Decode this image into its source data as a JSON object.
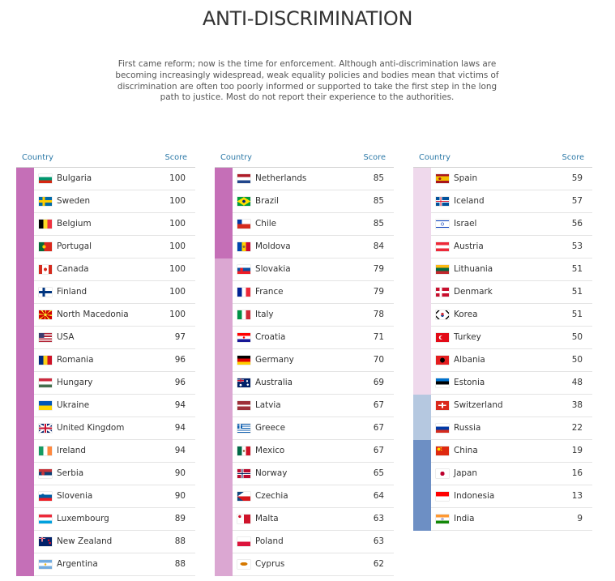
{
  "page": {
    "title": "ANTI-DISCRIMINATION",
    "intro": "First came reform; now is the time for enforcement. Although anti-discrimination laws are becoming increasingly widespread, weak equality policies and bodies mean that victims of discrimination are often too poorly informed or supported to take the first step in the long path to justice. Most do not report their experience to the authorities."
  },
  "chart_data": {
    "type": "table",
    "title": "ANTI-DISCRIMINATION",
    "columns": [
      "Country",
      "Score"
    ],
    "rows": [
      {
        "country": "Bulgaria",
        "score": 100,
        "flag": "bulgaria-flag",
        "color": "#c56fb7"
      },
      {
        "country": "Sweden",
        "score": 100,
        "flag": "sweden-flag",
        "color": "#c56fb7"
      },
      {
        "country": "Belgium",
        "score": 100,
        "flag": "belgium-flag",
        "color": "#c56fb7"
      },
      {
        "country": "Portugal",
        "score": 100,
        "flag": "portugal-flag",
        "color": "#c56fb7"
      },
      {
        "country": "Canada",
        "score": 100,
        "flag": "canada-flag",
        "color": "#c56fb7"
      },
      {
        "country": "Finland",
        "score": 100,
        "flag": "finland-flag",
        "color": "#c56fb7"
      },
      {
        "country": "North Macedonia",
        "score": 100,
        "flag": "north-macedonia-flag",
        "color": "#c56fb7"
      },
      {
        "country": "USA",
        "score": 97,
        "flag": "usa-flag",
        "color": "#c56fb7"
      },
      {
        "country": "Romania",
        "score": 96,
        "flag": "romania-flag",
        "color": "#c56fb7"
      },
      {
        "country": "Hungary",
        "score": 96,
        "flag": "hungary-flag",
        "color": "#c56fb7"
      },
      {
        "country": "Ukraine",
        "score": 94,
        "flag": "ukraine-flag",
        "color": "#c56fb7"
      },
      {
        "country": "United Kingdom",
        "score": 94,
        "flag": "united-kingdom-flag",
        "color": "#c56fb7"
      },
      {
        "country": "Ireland",
        "score": 94,
        "flag": "ireland-flag",
        "color": "#c56fb7"
      },
      {
        "country": "Serbia",
        "score": 90,
        "flag": "serbia-flag",
        "color": "#c56fb7"
      },
      {
        "country": "Slovenia",
        "score": 90,
        "flag": "slovenia-flag",
        "color": "#c56fb7"
      },
      {
        "country": "Luxembourg",
        "score": 89,
        "flag": "luxembourg-flag",
        "color": "#c56fb7"
      },
      {
        "country": "New Zealand",
        "score": 88,
        "flag": "new-zealand-flag",
        "color": "#c56fb7"
      },
      {
        "country": "Argentina",
        "score": 88,
        "flag": "argentina-flag",
        "color": "#c56fb7"
      },
      {
        "country": "Netherlands",
        "score": 85,
        "flag": "netherlands-flag",
        "color": "#c56fb7"
      },
      {
        "country": "Brazil",
        "score": 85,
        "flag": "brazil-flag",
        "color": "#c56fb7"
      },
      {
        "country": "Chile",
        "score": 85,
        "flag": "chile-flag",
        "color": "#c56fb7"
      },
      {
        "country": "Moldova",
        "score": 84,
        "flag": "moldova-flag",
        "color": "#c56fb7"
      },
      {
        "country": "Slovakia",
        "score": 79,
        "flag": "slovakia-flag",
        "color": "#dba7d2"
      },
      {
        "country": "France",
        "score": 79,
        "flag": "france-flag",
        "color": "#dba7d2"
      },
      {
        "country": "Italy",
        "score": 78,
        "flag": "italy-flag",
        "color": "#dba7d2"
      },
      {
        "country": "Croatia",
        "score": 71,
        "flag": "croatia-flag",
        "color": "#dba7d2"
      },
      {
        "country": "Germany",
        "score": 70,
        "flag": "germany-flag",
        "color": "#dba7d2"
      },
      {
        "country": "Australia",
        "score": 69,
        "flag": "australia-flag",
        "color": "#dba7d2"
      },
      {
        "country": "Latvia",
        "score": 67,
        "flag": "latvia-flag",
        "color": "#dba7d2"
      },
      {
        "country": "Greece",
        "score": 67,
        "flag": "greece-flag",
        "color": "#dba7d2"
      },
      {
        "country": "Mexico",
        "score": 67,
        "flag": "mexico-flag",
        "color": "#dba7d2"
      },
      {
        "country": "Norway",
        "score": 65,
        "flag": "norway-flag",
        "color": "#dba7d2"
      },
      {
        "country": "Czechia",
        "score": 64,
        "flag": "czechia-flag",
        "color": "#dba7d2"
      },
      {
        "country": "Malta",
        "score": 63,
        "flag": "malta-flag",
        "color": "#dba7d2"
      },
      {
        "country": "Poland",
        "score": 63,
        "flag": "poland-flag",
        "color": "#dba7d2"
      },
      {
        "country": "Cyprus",
        "score": 62,
        "flag": "cyprus-flag",
        "color": "#dba7d2"
      },
      {
        "country": "Spain",
        "score": 59,
        "flag": "spain-flag",
        "color": "#efd9ec"
      },
      {
        "country": "Iceland",
        "score": 57,
        "flag": "iceland-flag",
        "color": "#efd9ec"
      },
      {
        "country": "Israel",
        "score": 56,
        "flag": "israel-flag",
        "color": "#efd9ec"
      },
      {
        "country": "Austria",
        "score": 53,
        "flag": "austria-flag",
        "color": "#efd9ec"
      },
      {
        "country": "Lithuania",
        "score": 51,
        "flag": "lithuania-flag",
        "color": "#efd9ec"
      },
      {
        "country": "Denmark",
        "score": 51,
        "flag": "denmark-flag",
        "color": "#efd9ec"
      },
      {
        "country": "Korea",
        "score": 51,
        "flag": "korea-flag",
        "color": "#efd9ec"
      },
      {
        "country": "Turkey",
        "score": 50,
        "flag": "turkey-flag",
        "color": "#efd9ec"
      },
      {
        "country": "Albania",
        "score": 50,
        "flag": "albania-flag",
        "color": "#efd9ec"
      },
      {
        "country": "Estonia",
        "score": 48,
        "flag": "estonia-flag",
        "color": "#efd9ec"
      },
      {
        "country": "Switzerland",
        "score": 38,
        "flag": "switzerland-flag",
        "color": "#b5c8e0"
      },
      {
        "country": "Russia",
        "score": 22,
        "flag": "russia-flag",
        "color": "#b5c8e0"
      },
      {
        "country": "China",
        "score": 19,
        "flag": "china-flag",
        "color": "#6d8fc4"
      },
      {
        "country": "Japan",
        "score": 16,
        "flag": "japan-flag",
        "color": "#6d8fc4"
      },
      {
        "country": "Indonesia",
        "score": 13,
        "flag": "indonesia-flag",
        "color": "#6d8fc4"
      },
      {
        "country": "India",
        "score": 9,
        "flag": "india-flag",
        "color": "#6d8fc4"
      }
    ]
  }
}
